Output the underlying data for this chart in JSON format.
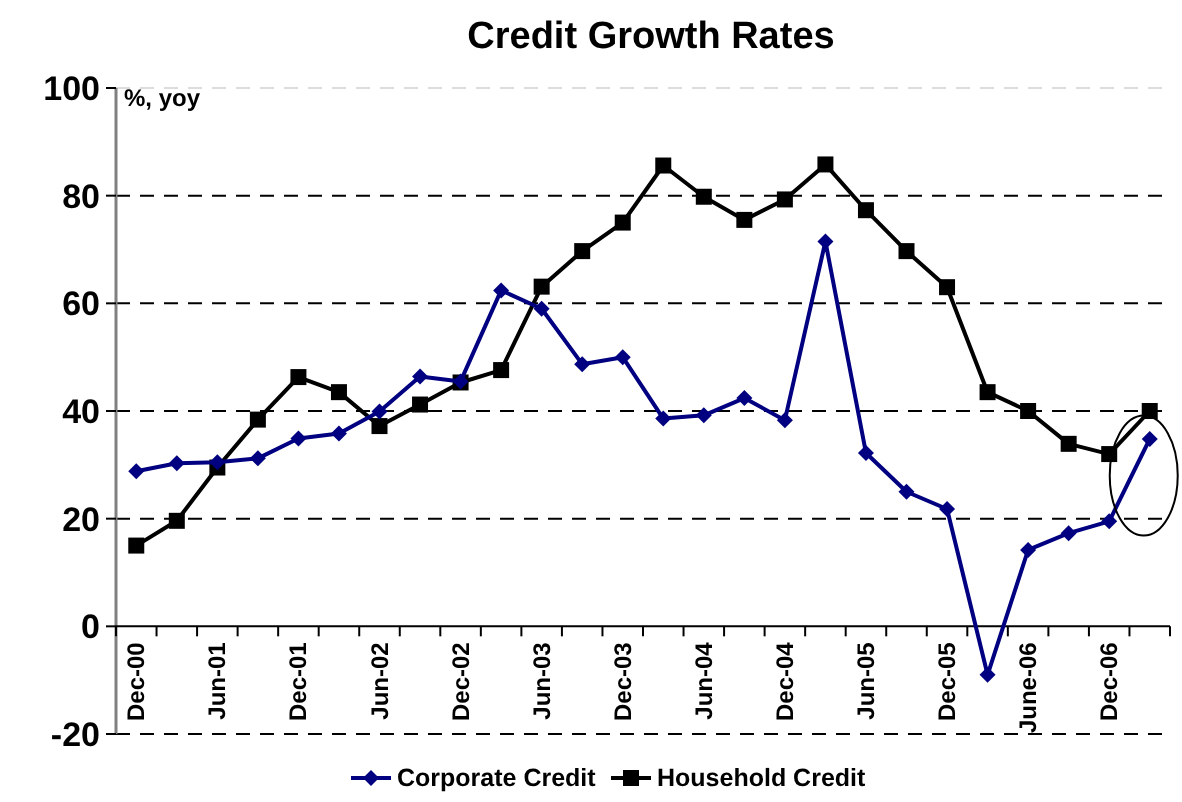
{
  "chart_data": {
    "type": "line",
    "title": "Credit Growth Rates",
    "ylabel": "%, yoy",
    "categories": [
      "Dec-00",
      null,
      "Jun-01",
      null,
      "Dec-01",
      null,
      "Jun-02",
      null,
      "Dec-02",
      null,
      "Jun-03",
      null,
      "Dec-03",
      null,
      "Jun-04",
      null,
      "Dec-04",
      null,
      "Jun-05",
      null,
      "Dec-05",
      null,
      "June-06",
      null,
      "Dec-06",
      null
    ],
    "series": [
      {
        "name": "Corporate Credit",
        "color": "#000080",
        "marker": "diamond",
        "values": [
          28.8,
          30.3,
          30.5,
          31.2,
          34.9,
          35.8,
          39.9,
          46.4,
          45.5,
          62.4,
          59,
          48.7,
          50,
          38.6,
          39.2,
          42.4,
          38.3,
          71.5,
          32.2,
          25,
          21.8,
          -9,
          14.2,
          17.3,
          19.5,
          34.8
        ]
      },
      {
        "name": "Household Credit",
        "color": "#000000",
        "marker": "square",
        "values": [
          15,
          19.6,
          29.5,
          38.4,
          46.3,
          43.5,
          37.2,
          41.2,
          45.3,
          47.6,
          63.1,
          69.7,
          75,
          85.6,
          79.8,
          75.5,
          79.3,
          85.8,
          77.3,
          69.7,
          63,
          43.5,
          40,
          33.9,
          32,
          40
        ]
      }
    ],
    "ylim": [
      -20,
      100
    ],
    "yticks": [
      -20,
      0,
      20,
      40,
      60,
      80,
      100
    ],
    "grid": "y",
    "legend": "bottom"
  }
}
